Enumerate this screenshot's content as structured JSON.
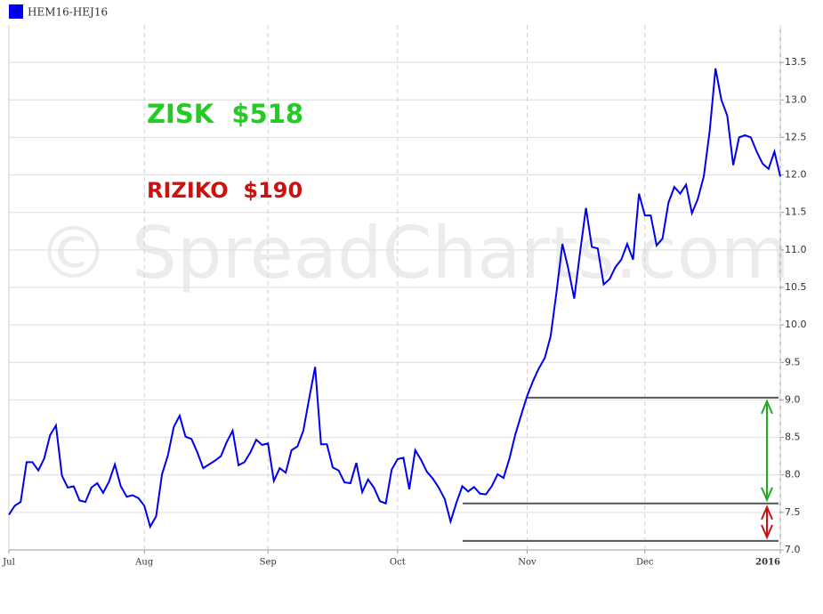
{
  "chart_data": {
    "type": "line",
    "legend": "top-left",
    "watermark": "© SpreadCharts.com",
    "annotations": [
      {
        "text": "ZISK  $518",
        "color": "#22cc22"
      },
      {
        "text": "RIZIKO  $190",
        "color": "#cc1111"
      }
    ],
    "categories": [
      "Jul",
      null,
      null,
      null,
      null,
      null,
      null,
      null,
      null,
      null,
      null,
      null,
      null,
      null,
      null,
      null,
      null,
      null,
      null,
      null,
      null,
      null,
      null,
      "Aug",
      null,
      null,
      null,
      null,
      null,
      null,
      null,
      null,
      null,
      null,
      null,
      null,
      null,
      null,
      null,
      null,
      null,
      null,
      null,
      null,
      "Sep",
      null,
      null,
      null,
      null,
      null,
      null,
      null,
      null,
      null,
      null,
      null,
      null,
      null,
      null,
      null,
      null,
      null,
      null,
      null,
      null,
      null,
      "Oct",
      null,
      null,
      null,
      null,
      null,
      null,
      null,
      null,
      null,
      null,
      null,
      null,
      null,
      null,
      null,
      null,
      null,
      null,
      null,
      null,
      null,
      "Nov",
      null,
      null,
      null,
      null,
      null,
      null,
      null,
      null,
      null,
      null,
      null,
      null,
      null,
      null,
      null,
      null,
      null,
      null,
      null,
      "Dec",
      null,
      null,
      null,
      null,
      null,
      null,
      null,
      null,
      null,
      null,
      null,
      null,
      null,
      null,
      null,
      null,
      null,
      null,
      null,
      null,
      null,
      null,
      "2016"
    ],
    "series": [
      {
        "name": "HEM16-HEJ16",
        "color": "#0000ee",
        "values": [
          7.47,
          7.59,
          7.64,
          8.17,
          8.17,
          8.06,
          8.22,
          8.53,
          8.66,
          7.99,
          7.83,
          7.85,
          7.66,
          7.64,
          7.83,
          7.89,
          7.76,
          7.91,
          8.14,
          7.85,
          7.71,
          7.73,
          7.69,
          7.59,
          7.31,
          7.45,
          8.01,
          8.26,
          8.64,
          8.79,
          8.51,
          8.48,
          8.3,
          8.09,
          8.14,
          8.19,
          8.25,
          8.44,
          8.59,
          8.13,
          8.17,
          8.3,
          8.47,
          8.4,
          8.42,
          7.92,
          8.09,
          8.03,
          8.33,
          8.38,
          8.59,
          9.02,
          9.44,
          8.41,
          8.41,
          8.1,
          8.06,
          7.9,
          7.89,
          8.16,
          7.77,
          7.94,
          7.83,
          7.65,
          7.62,
          8.07,
          8.21,
          8.23,
          7.81,
          8.33,
          8.2,
          8.04,
          7.95,
          7.83,
          7.68,
          7.38,
          7.63,
          7.85,
          7.78,
          7.84,
          7.75,
          7.74,
          7.85,
          8.01,
          7.96,
          8.22,
          8.54,
          8.8,
          9.05,
          9.25,
          9.42,
          9.56,
          9.85,
          10.44,
          11.08,
          10.75,
          10.35,
          10.97,
          11.56,
          11.04,
          11.02,
          10.54,
          10.61,
          10.77,
          10.87,
          11.08,
          10.87,
          11.75,
          11.46,
          11.46,
          11.06,
          11.15,
          11.63,
          11.84,
          11.75,
          11.87,
          11.49,
          11.68,
          11.98,
          12.58,
          13.42,
          13.0,
          12.79,
          12.13,
          12.5,
          12.53,
          12.5,
          12.31,
          12.15,
          12.08,
          12.31,
          11.98
        ]
      }
    ],
    "reference_lines": [
      {
        "value": 9.03,
        "color": "#555555"
      },
      {
        "value": 7.62,
        "color": "#555555"
      },
      {
        "value": 7.12,
        "color": "#555555"
      }
    ],
    "ranges": [
      {
        "from": 9.03,
        "to": 7.62,
        "color": "#22aa22"
      },
      {
        "from": 7.62,
        "to": 7.12,
        "color": "#cc1111"
      }
    ],
    "ylim": [
      7,
      14
    ],
    "yticks": [
      {
        "value": 7,
        "label": "7.0"
      },
      7.5,
      {
        "value": 8,
        "label": "8.0"
      },
      8.5,
      {
        "value": 9,
        "label": "9.0"
      },
      9.5,
      {
        "value": 10,
        "label": "10.0"
      },
      10.5,
      {
        "value": 11,
        "label": "11.0"
      },
      11.5,
      {
        "value": 12,
        "label": "12.0"
      },
      12.5,
      {
        "value": 13,
        "label": "13.0"
      },
      13.5
    ],
    "grid": true
  }
}
